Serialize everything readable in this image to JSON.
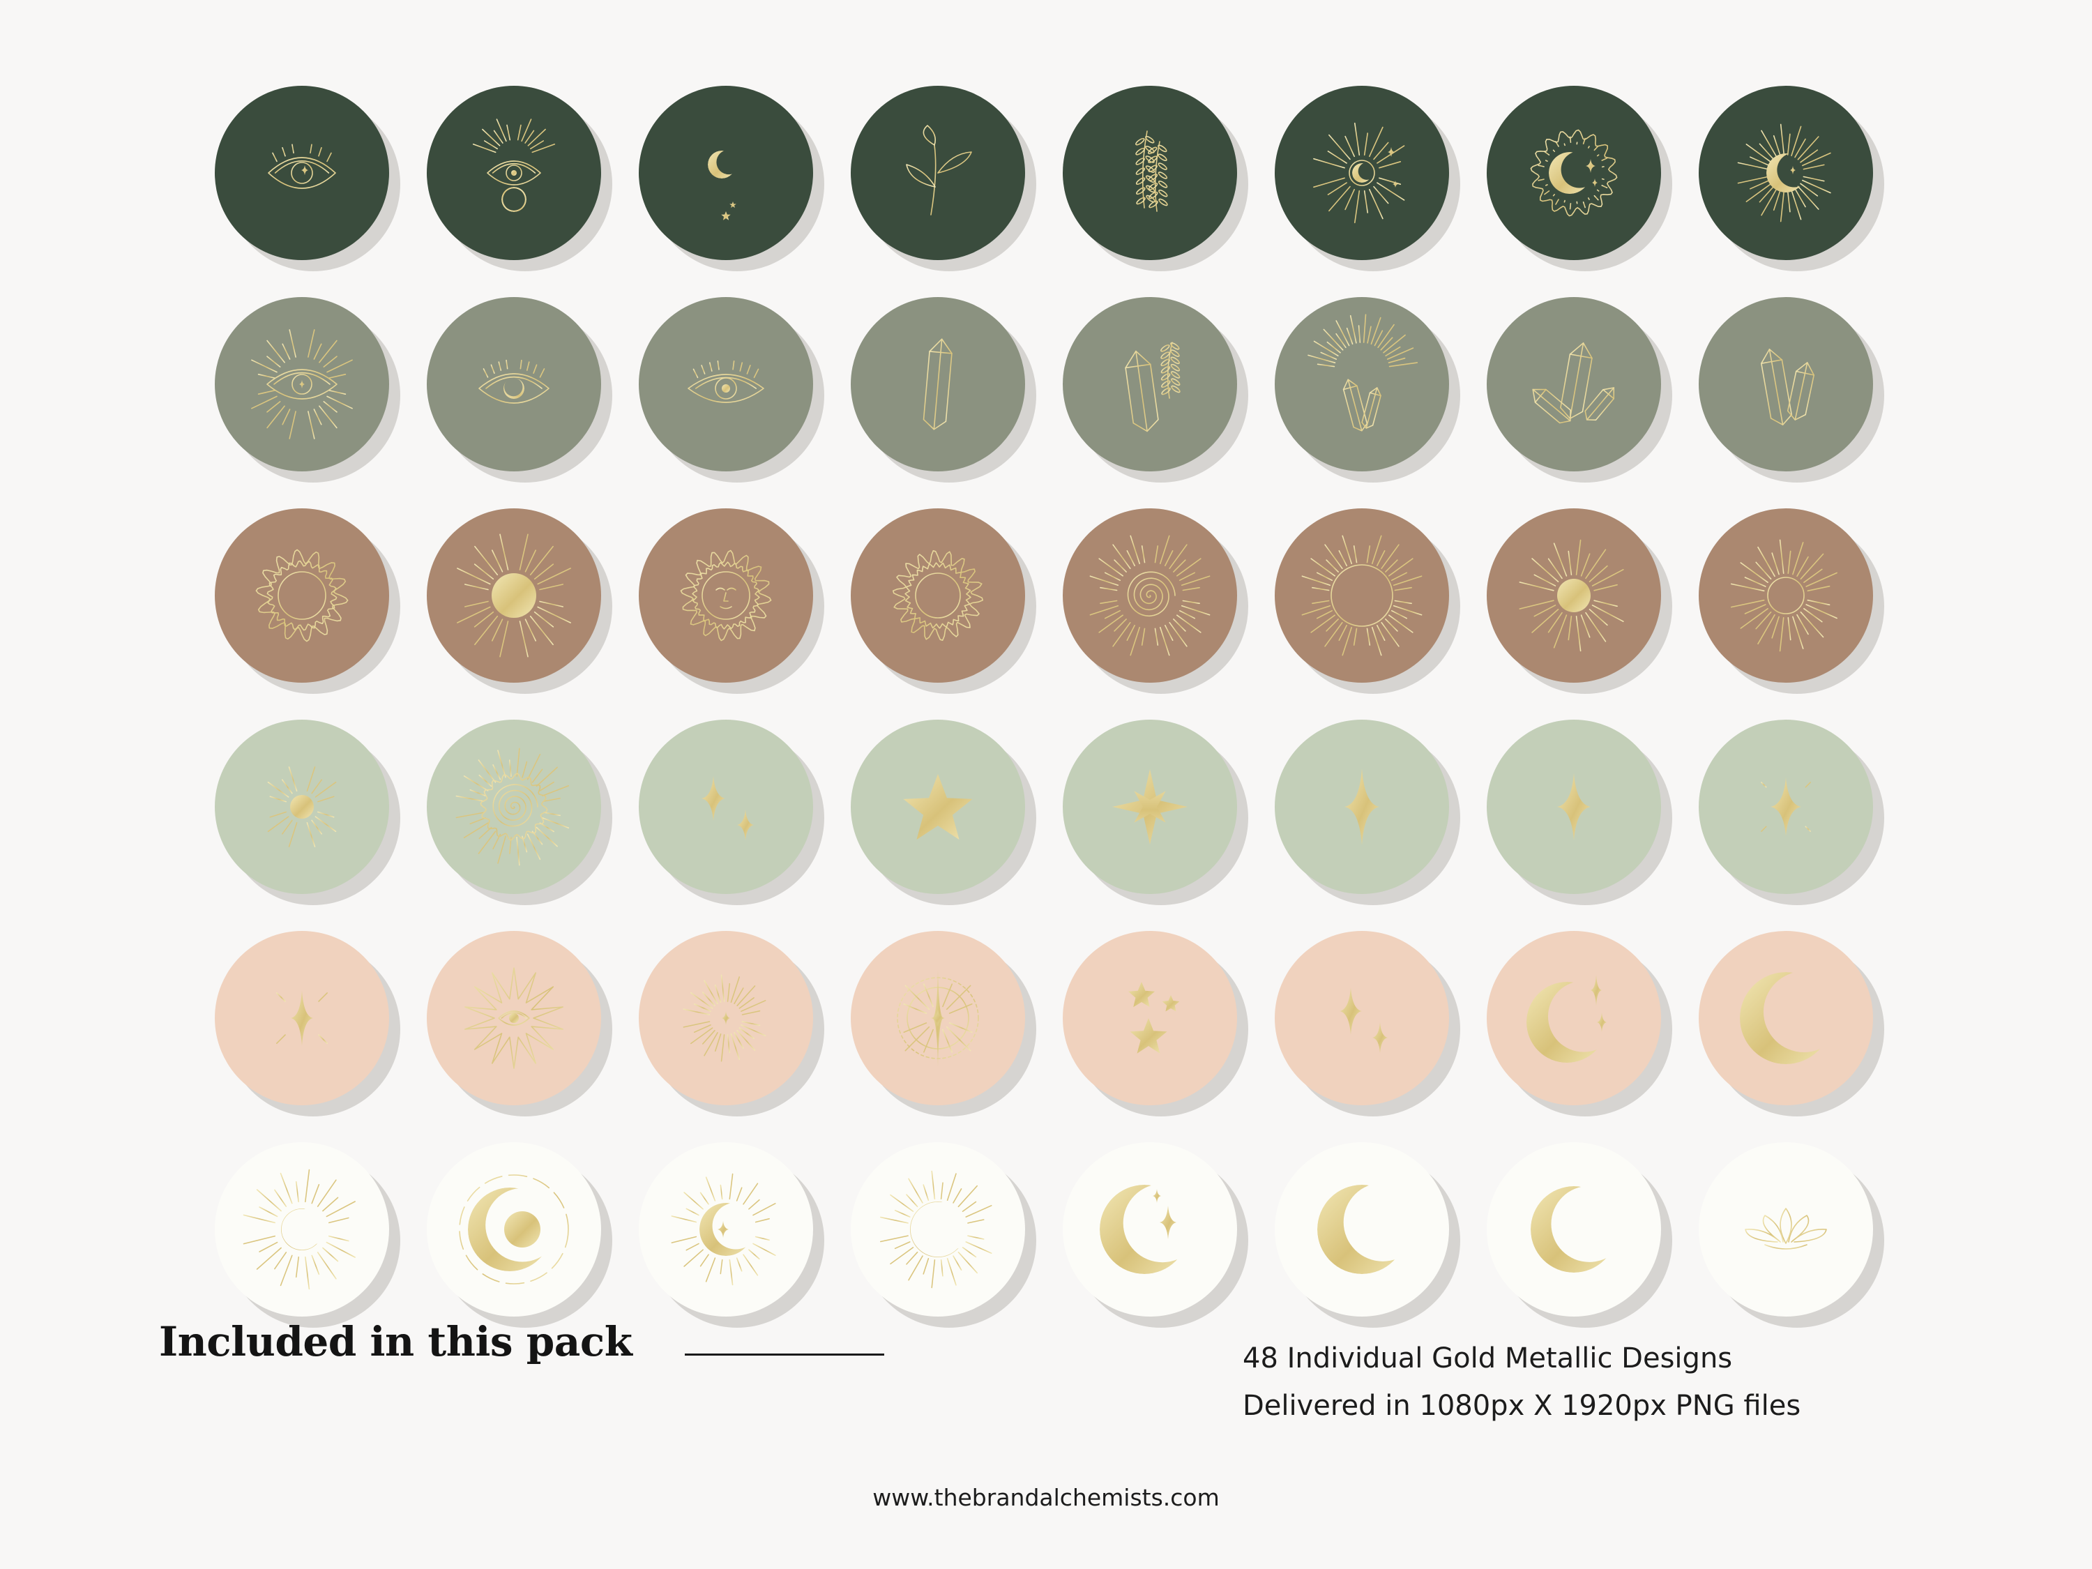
{
  "colors": {
    "background": "#f8f7f6",
    "gold": "#d8c27a",
    "gold_light": "#f1e6b4",
    "row_colors": [
      "#3a4c3d",
      "#8b9280",
      "#ab8870",
      "#c3cfb8",
      "#f0d2be",
      "#fcfcf8"
    ]
  },
  "grid": {
    "rows": [
      {
        "color_index": 0,
        "icons": [
          "eye-star-icon",
          "crowned-eye-moon-icon",
          "hanging-moon-icon",
          "leaf-sprig-icon",
          "lavender-sprig-icon",
          "moon-rays-icon",
          "sun-moon-icon",
          "radiant-crescent-icon"
        ]
      },
      {
        "color_index": 1,
        "icons": [
          "radiant-eye-icon",
          "eye-crescent-icon",
          "eye-lashes-icon",
          "single-crystal-icon",
          "crystal-lavender-icon",
          "crystal-cluster-rays-icon",
          "crystal-cluster-icon",
          "crystal-pair-icon"
        ]
      },
      {
        "color_index": 2,
        "icons": [
          "flame-sun-icon",
          "solid-sun-icon",
          "sun-face-icon",
          "wavy-sun-icon",
          "spiral-sun-icon",
          "ray-burst-icon",
          "small-sun-rays-icon",
          "sun-outline-rays-icon"
        ]
      },
      {
        "color_index": 3,
        "icons": [
          "dot-sun-icon",
          "spiral-sunburst-icon",
          "two-sparkles-icon",
          "five-point-star-icon",
          "eight-point-star-icon",
          "tall-sparkle-icon",
          "sparkle-icon",
          "sparkle-rays-icon"
        ]
      },
      {
        "color_index": 4,
        "icons": [
          "sparkle-beams-icon",
          "star-burst-eye-icon",
          "faint-sunburst-icon",
          "compass-star-icon",
          "three-stars-icon",
          "double-sparkle-icon",
          "crescent-sparkles-icon",
          "large-crescent-icon"
        ]
      },
      {
        "color_index": 5,
        "icons": [
          "crescent-rays-icon",
          "moon-dashed-ring-icon",
          "moon-sparkle-rays-icon",
          "outline-crescent-rays-icon",
          "crescent-star-icon",
          "thick-crescent-icon",
          "thin-crescent-icon",
          "lotus-icon"
        ]
      }
    ]
  },
  "footer": {
    "heading": "Included in this pack",
    "line1": "48 Individual Gold Metallic Designs",
    "line2": "Delivered in 1080px X 1920px PNG files",
    "website": "www.thebrandalchemists.com"
  }
}
